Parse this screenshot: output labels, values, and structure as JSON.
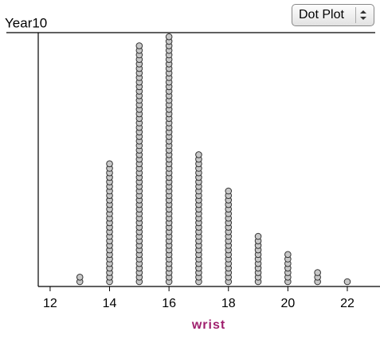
{
  "chart_data": {
    "type": "dotplot",
    "title": "Year10",
    "plot_type": "Dot Plot",
    "x_label": "wrist",
    "x": [
      13,
      14,
      15,
      16,
      17,
      18,
      19,
      20,
      21,
      22
    ],
    "counts": [
      2,
      27,
      53,
      55,
      29,
      21,
      11,
      7,
      3,
      1
    ],
    "xlim": [
      11.6,
      23.1
    ],
    "xticks": [
      12,
      14,
      16,
      18,
      20,
      22
    ],
    "color": "#c8c8c8"
  }
}
